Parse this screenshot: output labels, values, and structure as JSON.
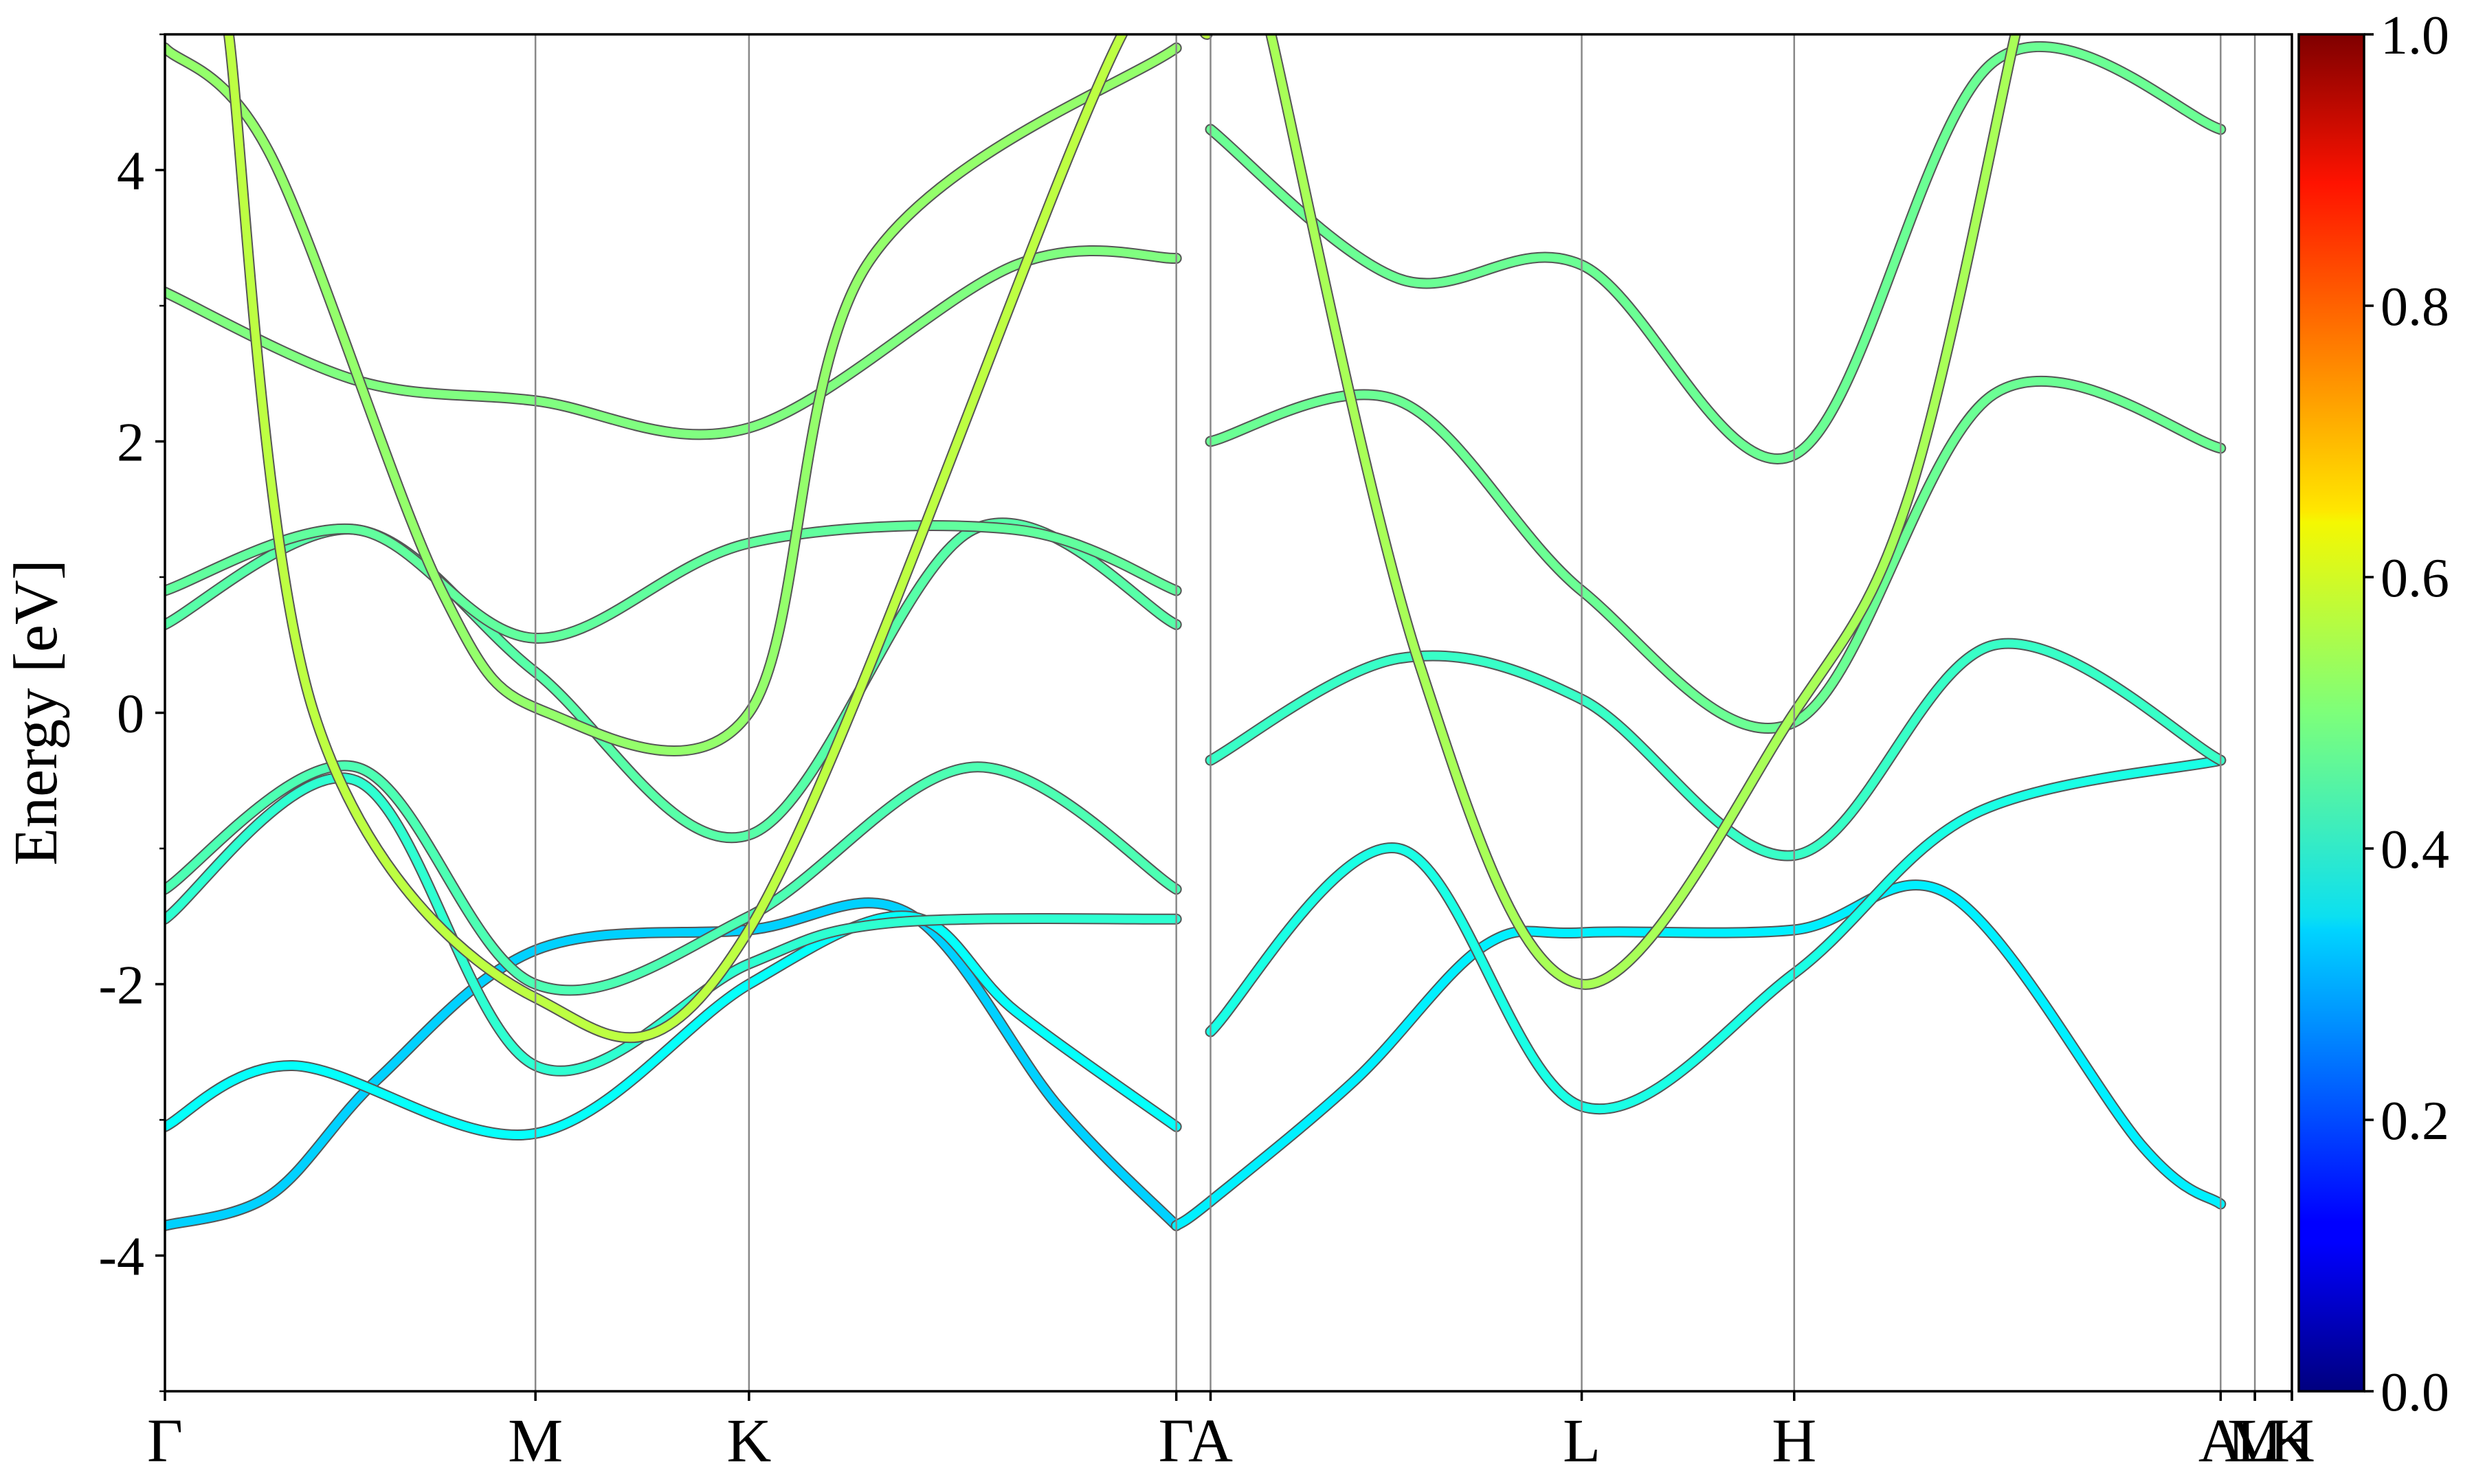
{
  "chart_data": {
    "type": "line",
    "title": "",
    "xlabel": "",
    "ylabel": "Energy [eV]",
    "ylim": [
      -5,
      5
    ],
    "y_ticks": [
      -4,
      -2,
      0,
      2,
      4
    ],
    "y_tick_labels": [
      "-4",
      "-2",
      "0",
      "2",
      "4"
    ],
    "kpath": [
      {
        "label": "Γ",
        "k": 0.0
      },
      {
        "label": "M",
        "k": 0.1742
      },
      {
        "label": "K",
        "k": 0.2746
      },
      {
        "label": "Γ",
        "k": 0.4755
      },
      {
        "label": "A",
        "k": 0.4916
      },
      {
        "label": "L",
        "k": 0.6661
      },
      {
        "label": "H",
        "k": 0.766
      },
      {
        "label": "A",
        "k": 0.9665
      },
      {
        "label": "L",
        "k": 0.9826
      },
      {
        "label": "M",
        "k": 0.9826
      },
      {
        "label": "H",
        "k": 1.0
      },
      {
        "label": "K",
        "k": 1.0
      }
    ],
    "grid": false,
    "colorbar": {
      "colormap": "jet",
      "range": [
        0.0,
        1.0
      ],
      "ticks": [
        0.0,
        0.2,
        0.4,
        0.6,
        0.8,
        1.0
      ],
      "tick_labels": [
        "0.0",
        "0.2",
        "0.4",
        "0.6",
        "0.8",
        "1.0"
      ]
    },
    "series": [
      {
        "weight": 0.33,
        "x": [
          0.0,
          0.05,
          0.1,
          0.1742,
          0.2746,
          0.35,
          0.42,
          0.4755
        ],
        "y": [
          -3.78,
          -3.55,
          -2.7,
          -1.75,
          -1.6,
          -1.48,
          -2.9,
          -3.78
        ]
      },
      {
        "weight": 0.36,
        "x": [
          0.4755,
          0.4916,
          0.56,
          0.62,
          0.6661,
          0.766,
          0.84,
          0.93,
          0.9665
        ],
        "y": [
          -3.78,
          -3.6,
          -2.7,
          -1.72,
          -1.62,
          -1.6,
          -1.35,
          -3.2,
          -3.62
        ]
      },
      {
        "weight": 0.38,
        "x": [
          0.0,
          0.06,
          0.1742,
          0.2746,
          0.35,
          0.4,
          0.4755
        ],
        "y": [
          -3.05,
          -2.6,
          -3.1,
          -2.0,
          -1.5,
          -2.2,
          -3.05
        ]
      },
      {
        "weight": 0.4,
        "x": [
          0.4916,
          0.58,
          0.6661,
          0.766,
          0.85,
          0.9665
        ],
        "y": [
          -2.35,
          -1.0,
          -2.9,
          -1.92,
          -0.75,
          -0.35
        ]
      },
      {
        "weight": 0.42,
        "x": [
          0.0,
          0.09,
          0.1742,
          0.2746,
          0.34,
          0.4755
        ],
        "y": [
          -1.52,
          -0.5,
          -2.6,
          -1.85,
          -1.55,
          -1.52
        ]
      },
      {
        "weight": 0.45,
        "x": [
          0.0,
          0.09,
          0.1742,
          0.2746,
          0.38,
          0.4755
        ],
        "y": [
          -1.3,
          -0.4,
          -2.0,
          -1.5,
          -0.4,
          -1.3
        ]
      },
      {
        "weight": 0.43,
        "x": [
          0.4916,
          0.58,
          0.6661,
          0.766,
          0.86,
          0.9665
        ],
        "y": [
          -0.35,
          0.4,
          0.1,
          -1.05,
          0.5,
          -0.35
        ]
      },
      {
        "weight": 0.46,
        "x": [
          0.0,
          0.09,
          0.1742,
          0.2746,
          0.38,
          0.4755
        ],
        "y": [
          0.65,
          1.35,
          0.3,
          -0.9,
          1.35,
          0.65
        ]
      },
      {
        "weight": 0.47,
        "x": [
          0.0,
          0.09,
          0.1742,
          0.2746,
          0.4,
          0.4755
        ],
        "y": [
          0.9,
          1.35,
          0.55,
          1.25,
          1.35,
          0.9
        ]
      },
      {
        "weight": 0.48,
        "x": [
          0.4916,
          0.58,
          0.6661,
          0.766,
          0.86,
          0.9665
        ],
        "y": [
          2.0,
          2.3,
          0.9,
          -0.07,
          2.35,
          1.95
        ]
      },
      {
        "weight": 0.48,
        "x": [
          0.4916,
          0.58,
          0.6661,
          0.766,
          0.86,
          0.9665
        ],
        "y": [
          4.3,
          3.2,
          3.3,
          1.9,
          4.8,
          4.3
        ]
      },
      {
        "weight": 0.5,
        "x": [
          0.0,
          0.09,
          0.1742,
          0.2746,
          0.4,
          0.4755
        ],
        "y": [
          3.1,
          2.45,
          2.3,
          2.1,
          3.3,
          3.35
        ]
      },
      {
        "weight": 0.52,
        "x": [
          0.0,
          0.05,
          0.13,
          0.18,
          0.2746,
          0.33,
          0.4755
        ],
        "y": [
          4.9,
          4.1,
          0.9,
          0.0,
          0.0,
          3.3,
          4.9
        ]
      },
      {
        "weight": 0.56,
        "x": [
          0.03,
          0.07,
          0.1742,
          0.2746,
          0.45,
          0.49
        ],
        "y": [
          5.0,
          0.0,
          -2.1,
          -1.6,
          5.0,
          5.0
        ]
      },
      {
        "weight": 0.54,
        "x": [
          0.52,
          0.59,
          0.6661,
          0.766,
          0.82,
          0.87
        ],
        "y": [
          5.0,
          0.35,
          -2.0,
          0.0,
          1.6,
          5.0
        ]
      }
    ]
  }
}
